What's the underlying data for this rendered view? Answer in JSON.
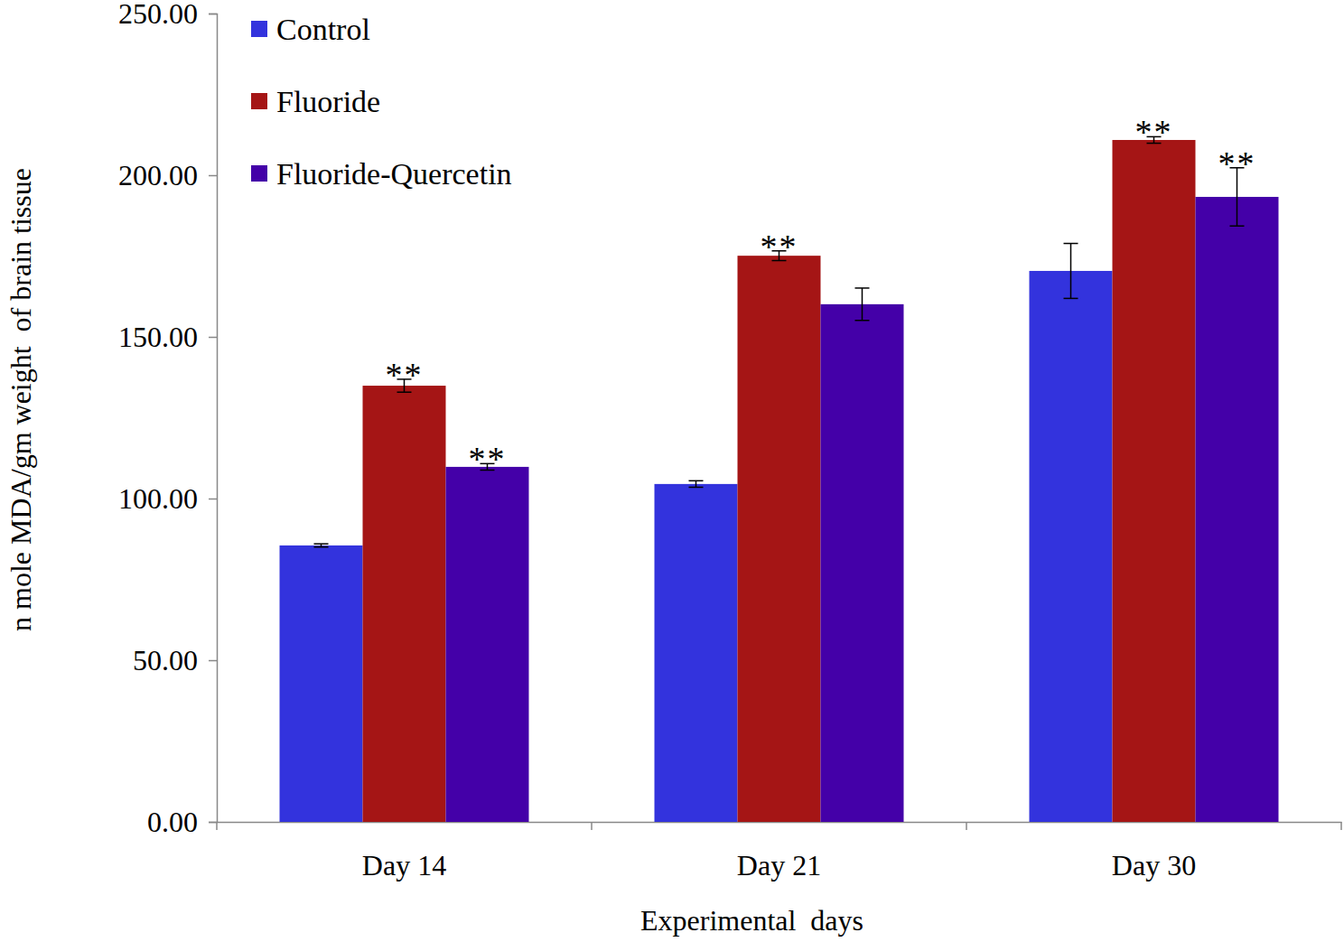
{
  "chart_data": {
    "type": "bar",
    "x_label": "Experimental  days",
    "y_label": "n mole MDA/gm weight  of brain tissue",
    "categories": [
      "Day 14",
      "Day 21",
      "Day 30"
    ],
    "series": [
      {
        "name": "Control",
        "color": "#3333dd",
        "values": [
          85.5,
          104.5,
          170.4
        ],
        "errors": [
          0.5,
          1.0,
          8.5
        ]
      },
      {
        "name": "Fluoride",
        "color": "#a51515",
        "values": [
          134.9,
          175.1,
          210.9
        ],
        "errors": [
          2.0,
          1.5,
          1.0
        ],
        "annotations": [
          "**",
          "**",
          "**"
        ]
      },
      {
        "name": "Fluoride-Quercetin",
        "color": "#4400a8",
        "values": [
          109.8,
          160.1,
          193.3
        ],
        "errors": [
          1.0,
          5.0,
          9.0
        ],
        "annotations": [
          "**",
          null,
          "**"
        ]
      }
    ],
    "ylim": [
      0,
      250
    ],
    "yticks": [
      {
        "value": 0,
        "label": "0.00"
      },
      {
        "value": 50,
        "label": "50.00"
      },
      {
        "value": 100,
        "label": "100.00"
      },
      {
        "value": 150,
        "label": "150.00"
      },
      {
        "value": 200,
        "label": "200.00"
      },
      {
        "value": 250,
        "label": "250.00"
      }
    ],
    "legend": "upper left",
    "grid": false
  }
}
